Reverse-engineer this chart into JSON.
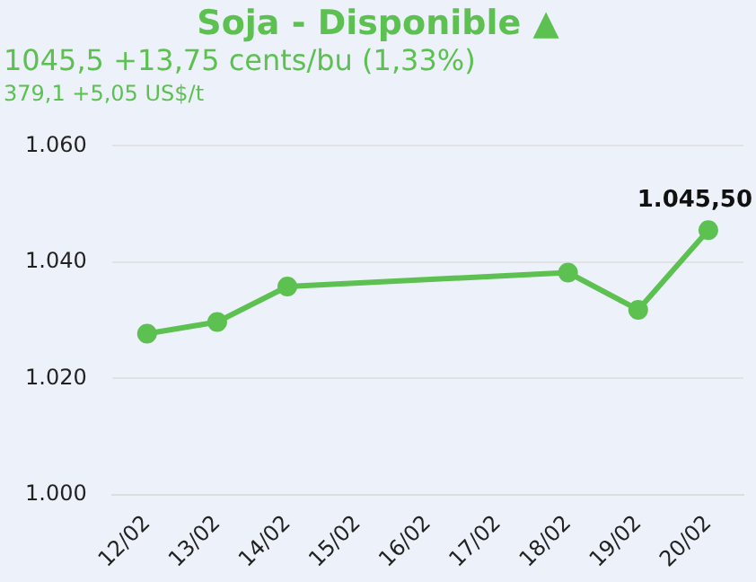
{
  "chart_data": {
    "type": "line",
    "title": "Soja - Disponible ▲",
    "subtitle": "1045,5 +13,75 cents/bu (1,33%)",
    "annotations": [
      "379,1 +5,05 US$/t"
    ],
    "categories": [
      "12/02",
      "13/02",
      "14/02",
      "15/02",
      "16/02",
      "17/02",
      "18/02",
      "19/02",
      "20/02"
    ],
    "series": [
      {
        "color": "#5cc150",
        "values": [
          1027.7,
          1029.7,
          1035.8,
          null,
          null,
          null,
          1038.2,
          1031.8,
          1045.5
        ],
        "value_labels": [
          null,
          null,
          null,
          null,
          null,
          null,
          null,
          null,
          "1.045,50"
        ]
      }
    ],
    "ylim": [
      1000,
      1060
    ],
    "yticks": [
      {
        "value": 1000,
        "label": "1.000"
      },
      {
        "value": 1020,
        "label": "1.020"
      },
      {
        "value": 1040,
        "label": "1.040"
      },
      {
        "value": 1060,
        "label": "1.060"
      }
    ],
    "grid": "y",
    "marker": "circle",
    "line_style": "solid",
    "legend": false
  }
}
